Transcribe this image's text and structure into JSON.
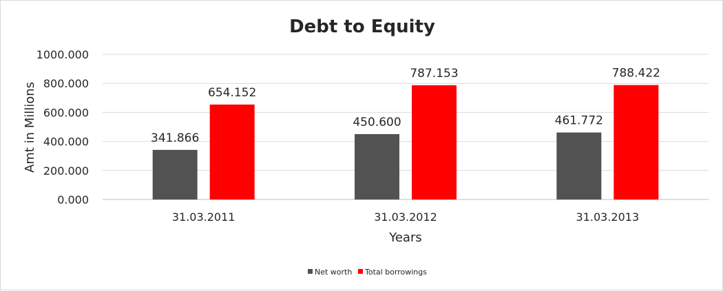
{
  "chart_data": {
    "type": "bar",
    "title": "Debt to Equity",
    "xlabel": "Years",
    "ylabel": "Amt in Millions",
    "categories": [
      "31.03.2011",
      "31.03.2012",
      "31.03.2013"
    ],
    "series": [
      {
        "name": "Net worth",
        "values": [
          341.866,
          450.6,
          461.772
        ],
        "value_labels": [
          "341.866",
          "450.600",
          "461.772"
        ],
        "color": "#525252"
      },
      {
        "name": "Total borrowings",
        "values": [
          654.152,
          787.153,
          788.422
        ],
        "value_labels": [
          "654.152",
          "787.153",
          "788.422"
        ],
        "color": "#ff0000"
      }
    ],
    "ylim": [
      0,
      1000
    ],
    "yticks": [
      0,
      200,
      400,
      600,
      800,
      1000
    ],
    "ytick_labels": [
      "0.000",
      "200.000",
      "400.000",
      "600.000",
      "800.000",
      "1000.000"
    ],
    "grid": true,
    "legend_position": "bottom"
  }
}
